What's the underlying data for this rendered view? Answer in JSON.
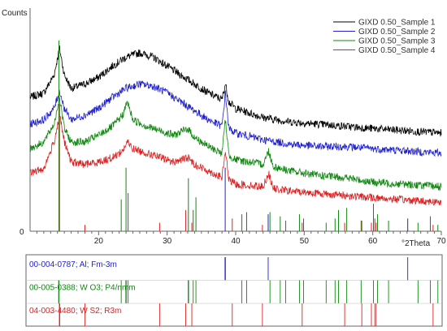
{
  "chart_data": {
    "type": "line",
    "ylabel": "Counts",
    "xlabel": "°2Theta",
    "xlim": [
      10,
      70
    ],
    "x_ticks": [
      20,
      30,
      40,
      50,
      60,
      70
    ],
    "y_tick_zero": "0",
    "grid": false,
    "legend_position": "top-right",
    "series": [
      {
        "name": "GIXD 0.50_Sample 1",
        "color": "#000000",
        "points": [
          [
            10,
            0.6
          ],
          [
            12,
            0.62
          ],
          [
            13.5,
            0.7
          ],
          [
            14.3,
            0.82
          ],
          [
            15,
            0.7
          ],
          [
            16,
            0.64
          ],
          [
            18,
            0.66
          ],
          [
            20,
            0.69
          ],
          [
            22,
            0.74
          ],
          [
            24,
            0.78
          ],
          [
            26,
            0.8
          ],
          [
            28,
            0.78
          ],
          [
            30,
            0.74
          ],
          [
            32,
            0.7
          ],
          [
            34,
            0.66
          ],
          [
            36,
            0.62
          ],
          [
            38,
            0.59
          ],
          [
            38.5,
            0.66
          ],
          [
            39,
            0.58
          ],
          [
            40,
            0.55
          ],
          [
            44,
            0.51
          ],
          [
            48,
            0.49
          ],
          [
            52,
            0.48
          ],
          [
            56,
            0.47
          ],
          [
            60,
            0.46
          ],
          [
            65,
            0.45
          ],
          [
            70,
            0.44
          ]
        ]
      },
      {
        "name": "GIXD 0.50_Sample 2",
        "color": "#2222cc",
        "points": [
          [
            10,
            0.48
          ],
          [
            12,
            0.5
          ],
          [
            13.5,
            0.55
          ],
          [
            14.3,
            0.63
          ],
          [
            15,
            0.55
          ],
          [
            16,
            0.5
          ],
          [
            18,
            0.52
          ],
          [
            20,
            0.55
          ],
          [
            22,
            0.6
          ],
          [
            24,
            0.64
          ],
          [
            26,
            0.66
          ],
          [
            28,
            0.65
          ],
          [
            30,
            0.62
          ],
          [
            32,
            0.58
          ],
          [
            34,
            0.54
          ],
          [
            36,
            0.5
          ],
          [
            38,
            0.47
          ],
          [
            38.5,
            0.62
          ],
          [
            39,
            0.46
          ],
          [
            40,
            0.44
          ],
          [
            44,
            0.41
          ],
          [
            48,
            0.39
          ],
          [
            52,
            0.38
          ],
          [
            56,
            0.38
          ],
          [
            60,
            0.37
          ],
          [
            65,
            0.36
          ],
          [
            70,
            0.35
          ]
        ]
      },
      {
        "name": "GIXD 0.50_Sample 3",
        "color": "#118811",
        "points": [
          [
            10,
            0.37
          ],
          [
            12,
            0.4
          ],
          [
            13.5,
            0.48
          ],
          [
            14.3,
            0.6
          ],
          [
            15,
            0.46
          ],
          [
            16,
            0.4
          ],
          [
            18,
            0.4
          ],
          [
            20,
            0.43
          ],
          [
            22,
            0.47
          ],
          [
            23.5,
            0.52
          ],
          [
            24.2,
            0.58
          ],
          [
            25,
            0.5
          ],
          [
            27,
            0.47
          ],
          [
            29,
            0.45
          ],
          [
            31,
            0.43
          ],
          [
            33,
            0.46
          ],
          [
            34,
            0.42
          ],
          [
            36,
            0.38
          ],
          [
            38,
            0.35
          ],
          [
            38.5,
            0.5
          ],
          [
            39,
            0.34
          ],
          [
            40,
            0.32
          ],
          [
            44,
            0.3
          ],
          [
            44.8,
            0.36
          ],
          [
            45.5,
            0.29
          ],
          [
            48,
            0.27
          ],
          [
            52,
            0.25
          ],
          [
            56,
            0.24
          ],
          [
            60,
            0.22
          ],
          [
            65,
            0.21
          ],
          [
            70,
            0.2
          ]
        ]
      },
      {
        "name": "GIXD 0.50_Sample 4",
        "color": "#dd2222",
        "points": [
          [
            10,
            0.26
          ],
          [
            12,
            0.28
          ],
          [
            13.5,
            0.4
          ],
          [
            14.3,
            0.52
          ],
          [
            15,
            0.4
          ],
          [
            16,
            0.31
          ],
          [
            18,
            0.3
          ],
          [
            20,
            0.31
          ],
          [
            22,
            0.33
          ],
          [
            23.5,
            0.36
          ],
          [
            24.2,
            0.4
          ],
          [
            25,
            0.37
          ],
          [
            27,
            0.35
          ],
          [
            29,
            0.33
          ],
          [
            31,
            0.31
          ],
          [
            33,
            0.33
          ],
          [
            34,
            0.3
          ],
          [
            36,
            0.27
          ],
          [
            38,
            0.24
          ],
          [
            38.5,
            0.36
          ],
          [
            39,
            0.23
          ],
          [
            40,
            0.21
          ],
          [
            44,
            0.2
          ],
          [
            44.8,
            0.26
          ],
          [
            45.5,
            0.19
          ],
          [
            48,
            0.18
          ],
          [
            52,
            0.17
          ],
          [
            56,
            0.16
          ],
          [
            60,
            0.15
          ],
          [
            65,
            0.14
          ],
          [
            70,
            0.13
          ]
        ]
      }
    ],
    "reference_patterns": [
      {
        "label": "00-004-0787; Al; Fm-3m",
        "color": "#2222cc",
        "peaks": [
          [
            38.47,
            0.3
          ],
          [
            44.74,
            0.08
          ],
          [
            65.1,
            0.06
          ]
        ]
      },
      {
        "label": "00-005-0388; W O3; P4/nmm",
        "color": "#118811",
        "peaks": [
          [
            14.2,
            0.9
          ],
          [
            23.3,
            0.15
          ],
          [
            24.0,
            0.3
          ],
          [
            24.3,
            0.18
          ],
          [
            33.1,
            0.25
          ],
          [
            33.8,
            0.1
          ],
          [
            34.2,
            0.16
          ],
          [
            40.9,
            0.08
          ],
          [
            41.6,
            0.09
          ],
          [
            45.0,
            0.09
          ],
          [
            46.5,
            0.07
          ],
          [
            47.3,
            0.05
          ],
          [
            49.3,
            0.08
          ],
          [
            49.9,
            0.06
          ],
          [
            53.2,
            0.04
          ],
          [
            54.5,
            0.06
          ],
          [
            55.0,
            0.1
          ],
          [
            56.2,
            0.11
          ],
          [
            58.3,
            0.05
          ],
          [
            60.1,
            0.13
          ],
          [
            60.7,
            0.08
          ],
          [
            62.3,
            0.05
          ],
          [
            66.6,
            0.04
          ],
          [
            68.4,
            0.07
          ],
          [
            69.5,
            0.03
          ]
        ]
      },
      {
        "label": "04-003-4480; W S2; R3m",
        "color": "#dd2222",
        "peaks": [
          [
            14.3,
            0.6
          ],
          [
            18.0,
            0.03
          ],
          [
            28.9,
            0.04
          ],
          [
            32.7,
            0.1
          ],
          [
            33.6,
            0.04
          ],
          [
            39.5,
            0.06
          ],
          [
            43.9,
            0.03
          ],
          [
            49.7,
            0.04
          ],
          [
            55.9,
            0.04
          ],
          [
            58.4,
            0.05
          ],
          [
            59.8,
            0.04
          ],
          [
            60.3,
            0.06
          ],
          [
            60.5,
            0.04
          ],
          [
            68.8,
            0.03
          ]
        ]
      }
    ]
  }
}
